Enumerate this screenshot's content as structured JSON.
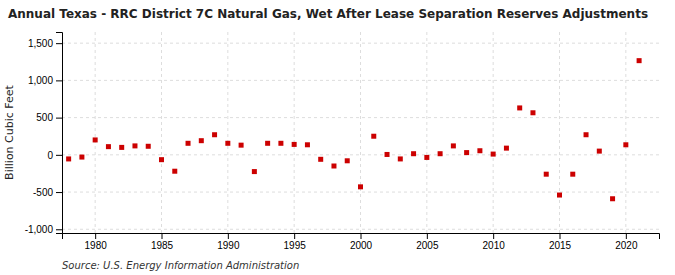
{
  "chart_data": {
    "type": "scatter",
    "title": "Annual Texas - RRC District 7C Natural Gas, Wet After Lease Separation Reserves Adjustments",
    "ylabel": "Billion Cubic Feet",
    "source": "Source: U.S. Energy Information Administration",
    "color": "#cc0000",
    "marker": "square",
    "grid": true,
    "x": [
      1978,
      1979,
      1980,
      1981,
      1982,
      1983,
      1984,
      1985,
      1986,
      1987,
      1988,
      1989,
      1990,
      1991,
      1992,
      1993,
      1994,
      1995,
      1996,
      1997,
      1998,
      1999,
      2000,
      2001,
      2002,
      2003,
      2004,
      2005,
      2006,
      2007,
      2008,
      2009,
      2010,
      2011,
      2012,
      2013,
      2014,
      2015,
      2016,
      2017,
      2018,
      2019,
      2020,
      2021
    ],
    "values": [
      -55,
      -30,
      200,
      110,
      100,
      120,
      115,
      -65,
      -220,
      155,
      190,
      270,
      155,
      130,
      -225,
      155,
      155,
      140,
      135,
      -60,
      -150,
      -80,
      -430,
      250,
      5,
      -55,
      15,
      -35,
      15,
      120,
      30,
      55,
      10,
      90,
      630,
      565,
      -260,
      -540,
      -260,
      270,
      50,
      -590,
      135,
      1265
    ],
    "xlim": [
      1977.5,
      2022.5
    ],
    "xticks": [
      1980,
      1985,
      1990,
      1995,
      2000,
      2005,
      2010,
      2015,
      2020
    ],
    "ylim": [
      -1050,
      1650
    ],
    "yticks": [
      {
        "value": -1000,
        "label": "-1,000"
      },
      {
        "value": -500,
        "label": "-500"
      },
      {
        "value": 0,
        "label": "0"
      },
      {
        "value": 500,
        "label": "500"
      },
      {
        "value": 1000,
        "label": "1,000"
      },
      {
        "value": 1500,
        "label": "1,500"
      }
    ]
  }
}
